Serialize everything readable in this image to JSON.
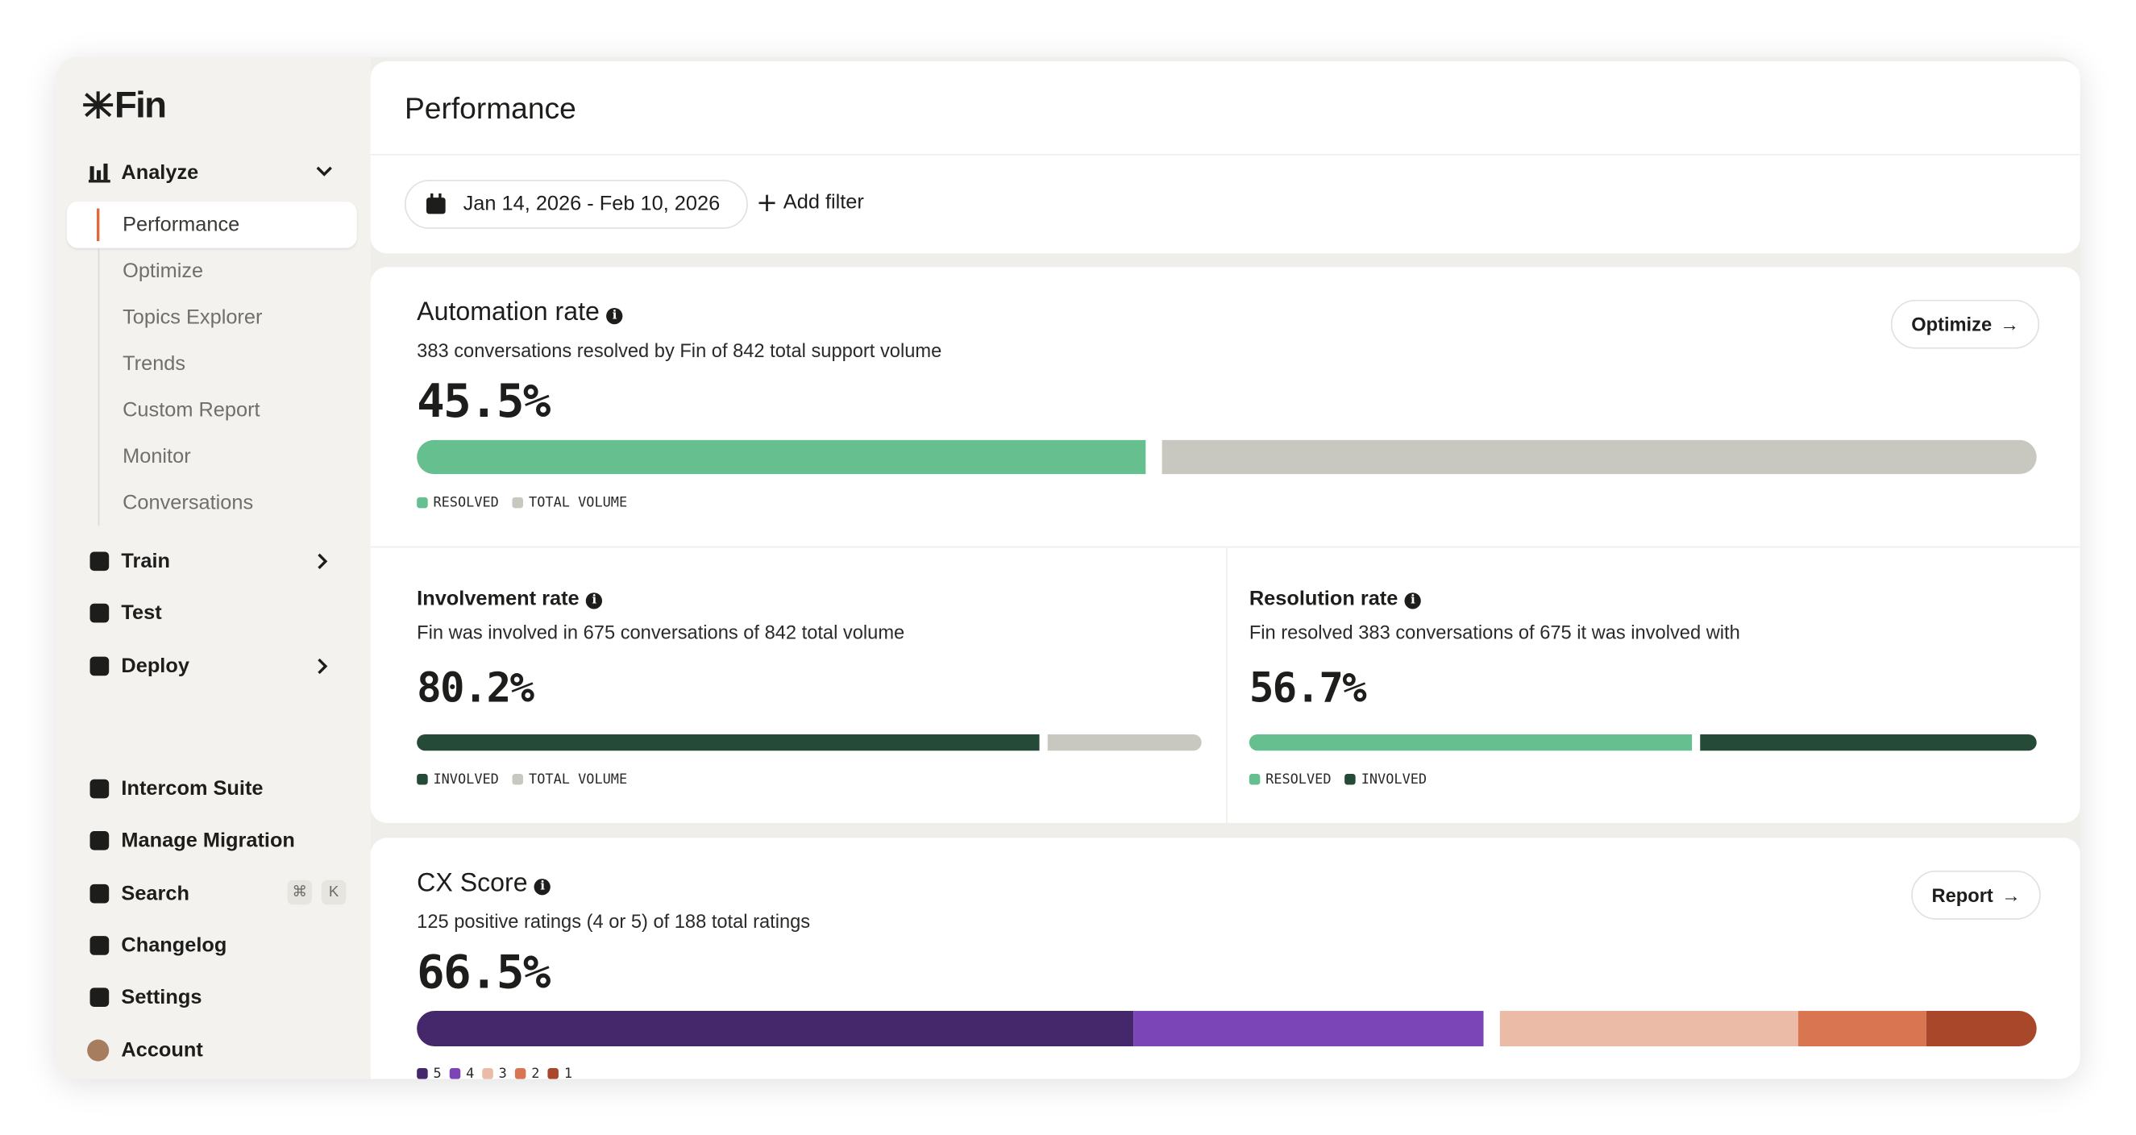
{
  "sidebar": {
    "logo": "Fin",
    "analyze": {
      "label": "Analyze",
      "items": [
        "Performance",
        "Optimize",
        "Topics Explorer",
        "Trends",
        "Custom Report",
        "Monitor",
        "Conversations"
      ]
    },
    "nav": [
      "Train",
      "Test",
      "Deploy"
    ],
    "bottom": [
      "Intercom Suite",
      "Manage Migration",
      "Search",
      "Changelog",
      "Settings",
      "Account"
    ],
    "shortcut": [
      "⌘",
      "K"
    ]
  },
  "header": {
    "title": "Performance",
    "date_range": "Jan 14, 2026 - Feb 10, 2026",
    "add_filter": "Add filter"
  },
  "metrics": [
    {
      "title": "Automation rate",
      "subtitle": "383 conversations resolved by Fin of 842 total support volume",
      "value": "45.5%",
      "button": "Optimize",
      "segments": [
        {
          "label": "RESOLVED",
          "value": 383,
          "color": "#66bf8f"
        },
        {
          "label": "TOTAL VOLUME",
          "value": 842,
          "color": "#c9c8c0"
        }
      ]
    },
    {
      "title": "Involvement rate",
      "subtitle": "Fin was involved in 675 conversations of 842 total volume",
      "value": "80.2%",
      "segments": [
        {
          "label": "INVOLVED",
          "value": 675,
          "color": "#264a38"
        },
        {
          "label": "TOTAL VOLUME",
          "value": 842,
          "color": "#c9c8c0"
        }
      ]
    },
    {
      "title": "Resolution rate",
      "subtitle": "Fin resolved 383 conversations of 675 it was involved with",
      "value": "56.7%",
      "segments": [
        {
          "label": "RESOLVED",
          "value": 383,
          "color": "#66bf8f"
        },
        {
          "label": "INVOLVED",
          "value": 675,
          "color": "#264a38"
        }
      ]
    },
    {
      "title": "CX Score",
      "subtitle": "125 positive ratings (4 or 5) of 188 total ratings",
      "value": "66.5%",
      "button": "Report",
      "segments": [
        {
          "label": "5",
          "value": 84,
          "color": "#45286b"
        },
        {
          "label": "4",
          "value": 41,
          "color": "#7b45b8"
        },
        {
          "label": "3",
          "value": 35,
          "color": "#ebbba8"
        },
        {
          "label": "2",
          "value": 15,
          "color": "#d97550"
        },
        {
          "label": "1",
          "value": 13,
          "color": "#a8472a"
        }
      ]
    }
  ]
}
